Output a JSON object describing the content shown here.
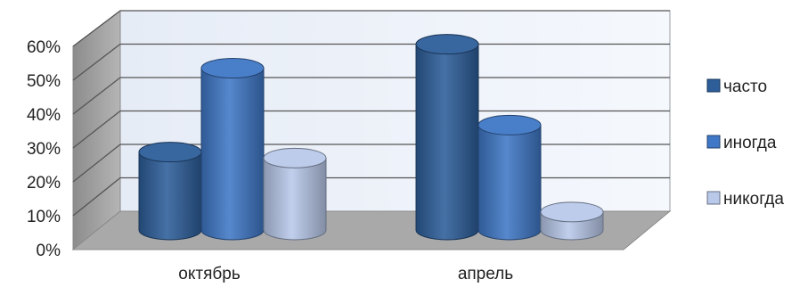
{
  "chart_data": {
    "type": "bar",
    "style": "3d-cylinder",
    "categories": [
      "октябрь",
      "апрель"
    ],
    "series": [
      {
        "name": "часто",
        "values": [
          0.26,
          0.62
        ],
        "color": "#2D5E9A"
      },
      {
        "name": "иногда",
        "values": [
          0.54,
          0.35
        ],
        "color": "#3F78C6"
      },
      {
        "name": "никогда",
        "values": [
          0.24,
          0.06
        ],
        "color": "#B9C9EA"
      }
    ],
    "yticks": [
      "0%",
      "10%",
      "20%",
      "30%",
      "40%",
      "50%",
      "60%"
    ],
    "ylim": [
      0,
      0.6
    ],
    "grid": true,
    "legend_position": "right",
    "title": "",
    "xlabel": "",
    "ylabel": ""
  }
}
